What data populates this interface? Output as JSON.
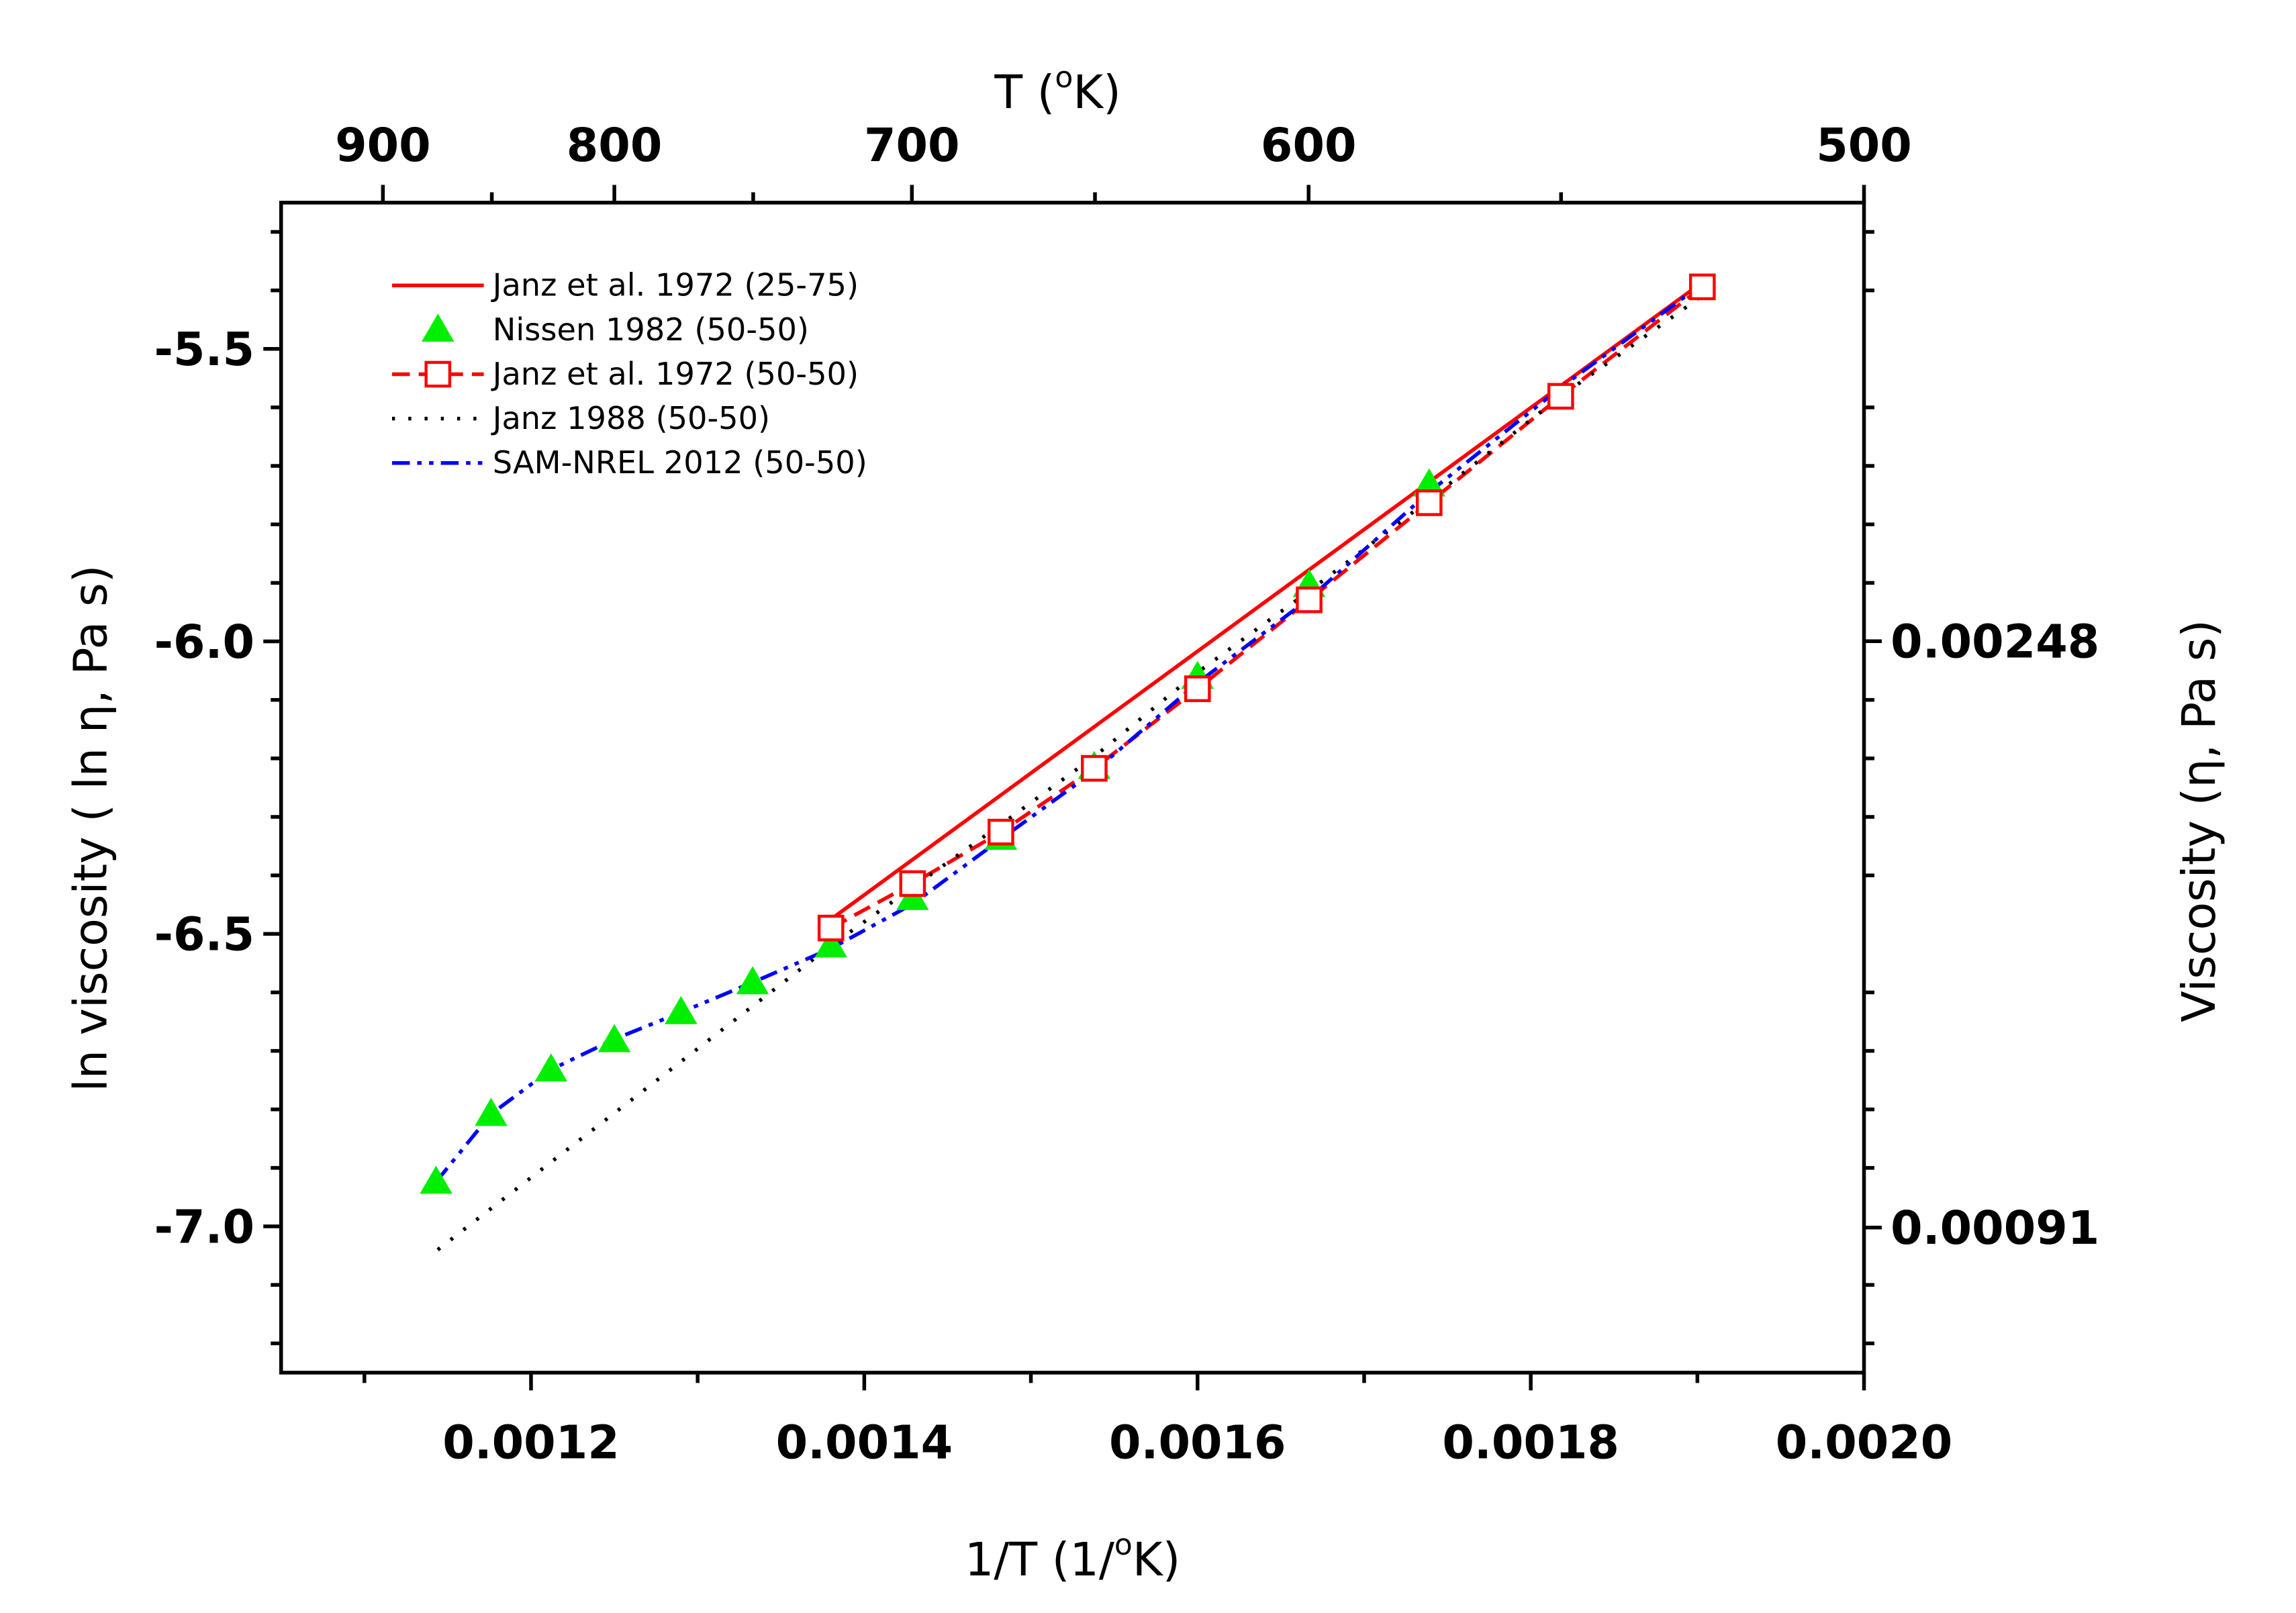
{
  "chart_data": {
    "type": "line",
    "xlabel": [
      "1/T (1/",
      "o",
      "K)"
    ],
    "x2label": [
      "T (",
      "o",
      "K)"
    ],
    "ylabel": "ln viscosity ( ln η, Pa s)",
    "y2label": "Viscosity (η, Pa s)",
    "xlim": [
      0.00105,
      0.002
    ],
    "xticks": [
      0.0012,
      0.0014,
      0.0016,
      0.0018,
      {
        "value": 0.002,
        "label": "0.0020"
      }
    ],
    "xminorticks": [
      0.0011,
      0.0013,
      0.0015,
      0.0017,
      0.0019
    ],
    "x2scale": "reciprocal",
    "x2ticks": [
      900,
      800,
      700,
      600,
      500
    ],
    "x2minorticks": [
      850,
      750,
      650,
      550
    ],
    "ylim": [
      -7.25,
      -5.25
    ],
    "yticks": [
      {
        "value": -7,
        "label": "-7.0"
      },
      -6.5,
      {
        "value": -6,
        "label": "-6.0"
      },
      -5.5
    ],
    "yminorticks": [
      -7.2,
      -7.1,
      -6.9,
      -6.8,
      -6.7,
      -6.6,
      -6.4,
      -6.3,
      -6.2,
      -6.1,
      -5.9,
      -5.8,
      -5.7,
      -5.6,
      -5.4,
      -5.3
    ],
    "y2scale": "log",
    "y2lim": [
      0.00071,
      0.00525
    ],
    "y2ticks": [
      0.00091,
      0.00248
    ],
    "legend": "upper left",
    "series": [
      {
        "name": "Janz et al. 1972 (25-75)",
        "color": "#ff0000",
        "line": "solid",
        "marker": "none",
        "x": [
          0.00138,
          0.001904
        ],
        "values": [
          -6.475,
          -5.384
        ]
      },
      {
        "name": "Nissen 1982 (50-50)",
        "color": "#00ee00",
        "line": "none",
        "marker": "triangle",
        "x": [
          0.001143,
          0.001176,
          0.001212,
          0.00125,
          0.00129,
          0.001333,
          0.00138,
          0.001429,
          0.001482,
          0.001538,
          0.0016,
          0.001667,
          0.001739
        ],
        "values": [
          -6.924,
          -6.808,
          -6.732,
          -6.682,
          -6.634,
          -6.583,
          -6.52,
          -6.439,
          -6.336,
          -6.215,
          -6.061,
          -5.904,
          -5.732
        ]
      },
      {
        "name": "Janz et al. 1972 (50-50)",
        "color": "#ff0000",
        "line": "dash",
        "marker": "square",
        "x": [
          0.00138,
          0.001429,
          0.001482,
          0.001538,
          0.0016,
          0.001667,
          0.001739,
          0.001818,
          0.001903
        ],
        "values": [
          -6.49,
          -6.414,
          -6.326,
          -6.217,
          -6.081,
          -5.929,
          -5.763,
          -5.581,
          -5.394
        ]
      },
      {
        "name": "Janz 1988 (50-50)",
        "color": "#000000",
        "line": "dot",
        "marker": "none",
        "x": [
          0.001144,
          0.00138,
          0.001482,
          0.001538,
          0.0016,
          0.001667,
          0.001739,
          0.001818,
          0.001903
        ],
        "values": [
          -7.04,
          -6.52,
          -6.313,
          -6.197,
          -6.053,
          -5.914,
          -5.758,
          -5.581,
          -5.409
        ]
      },
      {
        "name": "SAM-NREL 2012 (50-50)",
        "color": "#0000ff",
        "line": "dashdotdot",
        "marker": "none",
        "x": [
          0.001143,
          0.001176,
          0.001212,
          0.00125,
          0.00129,
          0.001333,
          0.00138,
          0.001429,
          0.001482,
          0.001538,
          0.0016,
          0.001667,
          0.001739,
          0.001818,
          0.001903
        ],
        "values": [
          -6.924,
          -6.808,
          -6.732,
          -6.68,
          -6.634,
          -6.583,
          -6.525,
          -6.449,
          -6.338,
          -6.222,
          -6.071,
          -5.927,
          -5.745,
          -5.566,
          -5.389
        ]
      }
    ]
  }
}
